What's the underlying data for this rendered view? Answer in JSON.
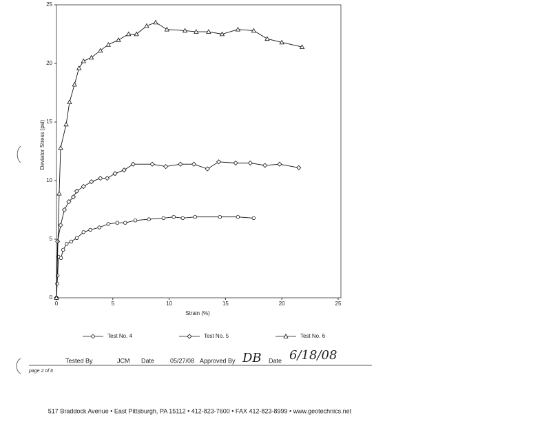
{
  "chart_data": {
    "type": "line",
    "xlabel": "Strain (%)",
    "ylabel": "Deviator Stress (psi)",
    "xlim": [
      0,
      25
    ],
    "xticks": [
      0,
      5,
      10,
      15,
      20,
      25
    ],
    "ylim": [
      0,
      25
    ],
    "yticks": [
      0,
      5,
      10,
      15,
      20,
      25
    ],
    "grid": false,
    "series": [
      {
        "name": "Test No. 4",
        "color": "#111111",
        "marker": "circle",
        "x": [
          0,
          0.06,
          0.1,
          0.18,
          0.4,
          0.6,
          0.9,
          1.3,
          1.8,
          2.4,
          3.0,
          3.8,
          4.6,
          5.4,
          6.1,
          7.0,
          8.2,
          9.5,
          10.4,
          11.2,
          12.3,
          14.5,
          16.1,
          17.5
        ],
        "y": [
          0,
          1.2,
          1.9,
          3.5,
          3.4,
          4.1,
          4.6,
          4.8,
          5.1,
          5.6,
          5.8,
          6.0,
          6.3,
          6.4,
          6.4,
          6.6,
          6.7,
          6.8,
          6.9,
          6.8,
          6.9,
          6.9,
          6.9,
          6.8
        ]
      },
      {
        "name": "Test No. 5",
        "color": "#111111",
        "marker": "diamond",
        "x": [
          0,
          0.1,
          0.37,
          0.7,
          1.1,
          1.5,
          1.8,
          2.4,
          3.1,
          3.9,
          4.5,
          5.2,
          6.0,
          6.8,
          8.5,
          9.7,
          11.0,
          12.2,
          13.4,
          14.4,
          15.9,
          17.2,
          18.5,
          19.8,
          21.5
        ],
        "y": [
          0,
          4.8,
          6.2,
          7.5,
          8.2,
          8.6,
          9.1,
          9.5,
          9.9,
          10.2,
          10.2,
          10.6,
          10.9,
          11.4,
          11.4,
          11.2,
          11.4,
          11.4,
          11.0,
          11.6,
          11.5,
          11.5,
          11.3,
          11.4,
          11.1
        ]
      },
      {
        "name": "Test No. 6",
        "color": "#111111",
        "marker": "triangle",
        "x": [
          0,
          0.24,
          0.37,
          0.86,
          1.16,
          1.6,
          2.0,
          2.4,
          3.1,
          3.9,
          4.6,
          5.5,
          6.4,
          7.1,
          8.0,
          8.8,
          9.8,
          11.4,
          12.4,
          13.5,
          14.7,
          16.1,
          17.5,
          18.7,
          20.0,
          21.8
        ],
        "y": [
          0,
          8.9,
          12.8,
          14.8,
          16.7,
          18.2,
          19.6,
          20.2,
          20.5,
          21.1,
          21.6,
          22.0,
          22.5,
          22.5,
          23.2,
          23.5,
          22.9,
          22.8,
          22.7,
          22.7,
          22.5,
          22.9,
          22.8,
          22.1,
          21.8,
          21.4
        ]
      }
    ]
  },
  "signature_block": {
    "tested_by_label": "Tested By",
    "tested_by": "JCM",
    "date_label": "Date",
    "date": "05/27/08",
    "approved_by_label": "Approved By",
    "approved_by": "DB",
    "approved_date_label": "Date",
    "approved_date": "6/18/08",
    "page": "page 2 of 6"
  },
  "footer": {
    "address": "517 Braddock Avenue • East Pittsburgh, PA 15112 • 412-823-7600 • FAX 412-823-8999 • www.geotechnics.net"
  }
}
